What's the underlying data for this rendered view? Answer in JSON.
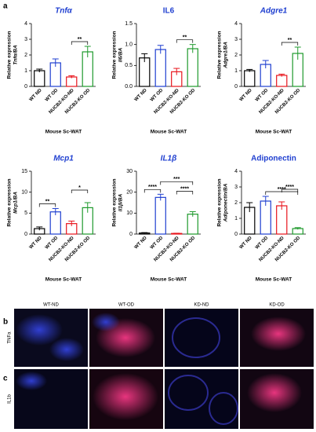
{
  "panel_labels": [
    "a",
    "b",
    "c"
  ],
  "image_columns": [
    "WT-ND",
    "WT-OD",
    "KD-ND",
    "KD-OD"
  ],
  "image_rows": [
    "TNFa",
    "IL1b"
  ],
  "chart_data": [
    {
      "type": "bar",
      "title": "Tnfα",
      "ylabel": [
        "Relative expression",
        "Tnfα/BA"
      ],
      "xlabel": "Mouse Sc-WAT",
      "categories": [
        "WT ND",
        "WT OD",
        "NUCB2-KO-ND",
        "NUCB2-KO OD"
      ],
      "colors": [
        "#000000",
        "#1f3fd0",
        "#e8141c",
        "#1e9a2c"
      ],
      "values": [
        1.0,
        1.5,
        0.6,
        2.2
      ],
      "errors": [
        0.1,
        0.25,
        0.08,
        0.35
      ],
      "ylim": [
        0,
        4
      ],
      "yticks": [
        0,
        1,
        2,
        3,
        4
      ],
      "annotations": [
        {
          "text": "**",
          "from": 2,
          "to": 3
        }
      ]
    },
    {
      "type": "bar",
      "title": "IL6",
      "ylabel": [
        "Relative expression",
        "Il6/BA"
      ],
      "xlabel": "Mouse Sc-WAT",
      "categories": [
        "WT ND",
        "WT OD",
        "NUCB2-KO-ND",
        "NUCB2-KO OD"
      ],
      "colors": [
        "#000000",
        "#1f3fd0",
        "#e8141c",
        "#1e9a2c"
      ],
      "values": [
        0.68,
        0.88,
        0.35,
        0.9
      ],
      "errors": [
        0.1,
        0.1,
        0.08,
        0.1
      ],
      "ylim": [
        0,
        1.5
      ],
      "yticks": [
        {
          "value": 0,
          "label": "0.0"
        },
        0.5,
        {
          "value": 1,
          "label": "1.0"
        },
        1.5
      ],
      "annotations": [
        {
          "text": "**",
          "from": 2,
          "to": 3
        }
      ]
    },
    {
      "type": "bar",
      "title": "Adgre1",
      "ylabel": [
        "Relative expression",
        "Adgre1/BA"
      ],
      "xlabel": "Mouse Sc-WAT",
      "categories": [
        "WT ND",
        "WT OD",
        "NUCB2-KO-ND",
        "NUCB2-KO OD"
      ],
      "colors": [
        "#000000",
        "#1f3fd0",
        "#e8141c",
        "#1e9a2c"
      ],
      "values": [
        1.0,
        1.4,
        0.7,
        2.1
      ],
      "errors": [
        0.08,
        0.25,
        0.08,
        0.4
      ],
      "ylim": [
        0,
        4
      ],
      "yticks": [
        0,
        1,
        2,
        3,
        4
      ],
      "annotations": [
        {
          "text": "**",
          "from": 2,
          "to": 3
        }
      ]
    },
    {
      "type": "bar",
      "title": "Mcp1",
      "ylabel": [
        "Relative expression",
        "Mcp1/BA"
      ],
      "xlabel": "Mouse Sc-WAT",
      "categories": [
        "WT ND",
        "WT OD",
        "NUCB2-KO-ND",
        "NUCB2-KO OD"
      ],
      "colors": [
        "#000000",
        "#1f3fd0",
        "#e8141c",
        "#1e9a2c"
      ],
      "values": [
        1.3,
        5.3,
        2.5,
        6.3
      ],
      "errors": [
        0.4,
        0.8,
        0.6,
        1.2
      ],
      "ylim": [
        0,
        15
      ],
      "yticks": [
        0,
        5,
        10,
        15
      ],
      "annotations": [
        {
          "text": "**",
          "from": 0,
          "to": 1
        },
        {
          "text": "*",
          "from": 2,
          "to": 3
        }
      ]
    },
    {
      "type": "bar",
      "title": "IL1β",
      "ylabel": [
        "Relative expression",
        "Il1β/BA"
      ],
      "xlabel": "Mouse Sc-WAT",
      "categories": [
        "WT ND",
        "WT OD",
        "NUCB2-KO-ND",
        "NUCB2-KO OD"
      ],
      "colors": [
        "#000000",
        "#1f3fd0",
        "#e8141c",
        "#1e9a2c"
      ],
      "values": [
        0.5,
        17.5,
        0.3,
        9.5
      ],
      "errors": [
        0.2,
        1.5,
        0.1,
        1.2
      ],
      "ylim": [
        0,
        30
      ],
      "yticks": [
        0,
        10,
        20,
        30
      ],
      "annotations": [
        {
          "text": "****",
          "from": 0,
          "to": 1
        },
        {
          "text": "***",
          "from": 1,
          "to": 3
        },
        {
          "text": "****",
          "from": 2,
          "to": 3
        }
      ]
    },
    {
      "type": "bar",
      "title": "Adiponectin",
      "ylabel": [
        "Relative expression",
        "Adiponectin/BA"
      ],
      "xlabel": "Mouse Sc-WAT",
      "categories": [
        "WT ND",
        "WT OD",
        "NUCB2-KO-ND",
        "NUCB2-KO OD"
      ],
      "colors": [
        "#000000",
        "#1f3fd0",
        "#e8141c",
        "#1e9a2c"
      ],
      "values": [
        1.7,
        2.1,
        1.8,
        0.35
      ],
      "errors": [
        0.3,
        0.3,
        0.25,
        0.06
      ],
      "ylim": [
        0,
        4
      ],
      "yticks": [
        0,
        1,
        2,
        3,
        4
      ],
      "annotations": [
        {
          "text": "****",
          "from": 1,
          "to": 3
        },
        {
          "text": "****",
          "from": 2,
          "to": 3
        }
      ]
    }
  ]
}
